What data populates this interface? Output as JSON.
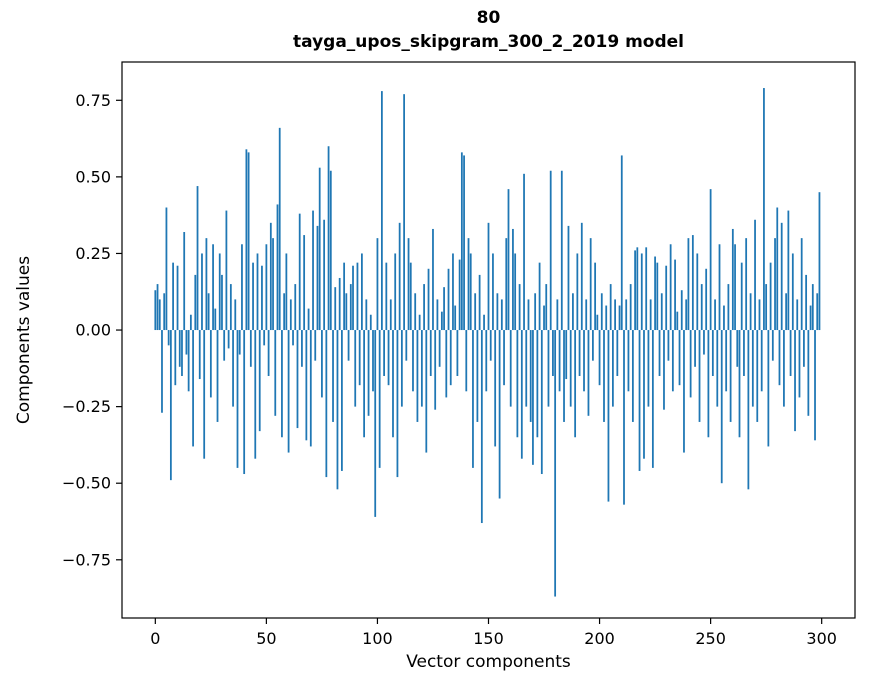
{
  "figure": {
    "suptitle": "80",
    "title": "tayga_upos_skipgram_300_2_2019 model",
    "xlabel": "Vector components",
    "ylabel": "Components values"
  },
  "chart_data": {
    "type": "bar",
    "title": "80",
    "subtitle": "tayga_upos_skipgram_300_2_2019 model",
    "xlabel": "Vector components",
    "ylabel": "Components values",
    "bar_color": "#1f77b4",
    "axis_color": "#000000",
    "grid": false,
    "legend": null,
    "xlim": [
      -15,
      315
    ],
    "ylim": [
      -0.94,
      0.875
    ],
    "bar_width": 0.8,
    "xticks": [
      0,
      50,
      100,
      150,
      200,
      250,
      300
    ],
    "xtick_labels": [
      "0",
      "50",
      "100",
      "150",
      "200",
      "250",
      "300"
    ],
    "yticks": [
      0.75,
      0.5,
      0.25,
      0.0,
      -0.25,
      -0.5,
      -0.75
    ],
    "ytick_labels": [
      "0.75",
      "0.50",
      "0.25",
      "0.00",
      "−0.25",
      "−0.50",
      "−0.75"
    ],
    "x_start": 0,
    "values": [
      0.13,
      0.15,
      0.1,
      -0.27,
      0.12,
      0.4,
      -0.05,
      -0.49,
      0.22,
      -0.18,
      0.21,
      -0.12,
      -0.15,
      0.32,
      -0.08,
      -0.2,
      0.05,
      -0.38,
      0.18,
      0.47,
      -0.16,
      0.25,
      -0.42,
      0.3,
      0.12,
      -0.22,
      0.28,
      0.07,
      -0.3,
      0.25,
      0.18,
      -0.1,
      0.39,
      -0.06,
      0.15,
      -0.25,
      0.1,
      -0.45,
      -0.08,
      0.28,
      -0.47,
      0.59,
      0.58,
      -0.12,
      0.22,
      -0.42,
      0.25,
      -0.33,
      0.21,
      -0.05,
      0.28,
      -0.15,
      0.35,
      0.3,
      -0.28,
      0.41,
      0.66,
      -0.35,
      0.12,
      0.25,
      -0.4,
      0.1,
      -0.05,
      0.15,
      -0.32,
      0.38,
      -0.12,
      0.31,
      -0.36,
      0.07,
      -0.38,
      0.39,
      -0.1,
      0.34,
      0.53,
      -0.22,
      0.36,
      -0.48,
      0.6,
      0.52,
      -0.3,
      0.14,
      -0.52,
      0.17,
      -0.46,
      0.22,
      0.12,
      -0.1,
      0.15,
      0.21,
      -0.25,
      0.22,
      -0.18,
      0.25,
      -0.35,
      0.1,
      -0.28,
      0.05,
      -0.2,
      -0.61,
      0.3,
      -0.45,
      0.78,
      -0.15,
      0.22,
      -0.18,
      0.1,
      -0.35,
      0.25,
      -0.48,
      0.35,
      -0.25,
      0.77,
      -0.1,
      0.3,
      0.22,
      -0.2,
      0.12,
      -0.3,
      0.05,
      -0.25,
      0.15,
      -0.4,
      0.2,
      -0.15,
      0.33,
      -0.26,
      0.1,
      -0.12,
      0.06,
      0.14,
      -0.22,
      0.2,
      -0.18,
      0.25,
      0.08,
      -0.15,
      0.23,
      0.58,
      0.57,
      -0.2,
      0.3,
      0.25,
      -0.45,
      0.12,
      -0.3,
      0.18,
      -0.63,
      0.05,
      -0.2,
      0.35,
      -0.1,
      0.25,
      -0.38,
      0.12,
      -0.55,
      0.1,
      -0.18,
      0.3,
      0.46,
      -0.25,
      0.33,
      0.25,
      -0.35,
      0.15,
      -0.42,
      0.51,
      -0.25,
      0.1,
      -0.3,
      -0.44,
      0.12,
      -0.35,
      0.22,
      -0.47,
      0.08,
      0.15,
      -0.25,
      0.52,
      -0.15,
      -0.87,
      0.1,
      -0.2,
      0.52,
      -0.3,
      -0.16,
      0.34,
      -0.25,
      0.12,
      -0.35,
      0.25,
      -0.15,
      0.35,
      -0.2,
      0.1,
      -0.28,
      0.3,
      -0.1,
      0.22,
      0.05,
      -0.18,
      0.12,
      -0.3,
      0.08,
      -0.56,
      0.15,
      -0.25,
      0.1,
      -0.15,
      0.08,
      0.57,
      -0.57,
      0.1,
      -0.2,
      0.15,
      -0.3,
      0.26,
      0.27,
      -0.46,
      0.25,
      -0.42,
      0.27,
      -0.25,
      0.1,
      -0.45,
      0.24,
      0.22,
      -0.15,
      0.12,
      -0.26,
      0.21,
      -0.1,
      0.28,
      -0.2,
      0.23,
      0.06,
      -0.18,
      0.13,
      -0.4,
      0.1,
      0.3,
      -0.22,
      0.31,
      -0.12,
      0.25,
      -0.3,
      0.15,
      -0.08,
      0.2,
      -0.35,
      0.46,
      -0.15,
      0.1,
      -0.25,
      0.28,
      -0.5,
      0.08,
      -0.2,
      0.15,
      -0.3,
      0.33,
      0.28,
      -0.12,
      -0.35,
      0.22,
      -0.15,
      0.3,
      -0.52,
      0.12,
      -0.25,
      0.36,
      -0.3,
      0.1,
      -0.2,
      0.79,
      0.15,
      -0.38,
      0.22,
      -0.1,
      0.3,
      0.4,
      -0.18,
      0.35,
      -0.25,
      0.12,
      0.39,
      -0.15,
      0.25,
      -0.33,
      0.1,
      -0.22,
      0.3,
      -0.12,
      0.18,
      -0.28,
      0.08,
      0.15,
      -0.36,
      0.12,
      0.45
    ]
  }
}
